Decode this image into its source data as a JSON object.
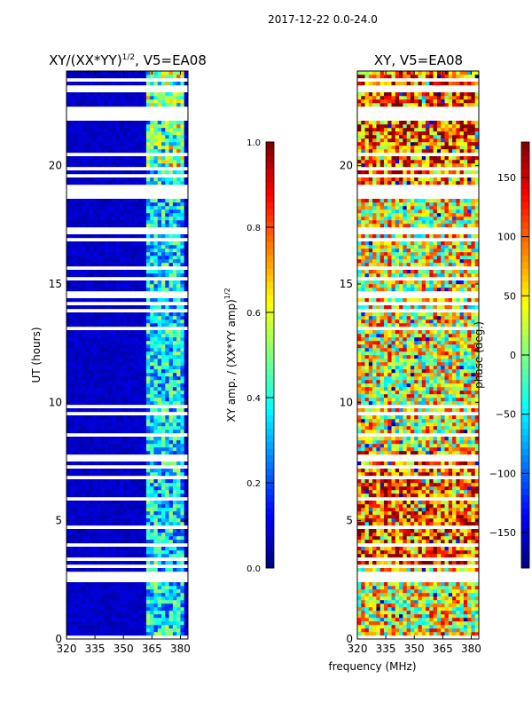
{
  "chart_data": [
    {
      "type": "heatmap",
      "suptitle": "2017-12-22 0.0-24.0",
      "title": "XY/(XX*YY)",
      "title_sup": "1/2",
      "title_suffix": ", V5=EA08",
      "xlabel": "",
      "ylabel": "UT (hours)",
      "xlim": [
        320,
        384
      ],
      "ylim": [
        0,
        24
      ],
      "xticks": [
        "320",
        "335",
        "350",
        "365",
        "380"
      ],
      "xtick_values": [
        320,
        335,
        350,
        365,
        380
      ],
      "yticks": [
        "0",
        "5",
        "10",
        "15",
        "20"
      ],
      "ytick_values": [
        0,
        5,
        10,
        15,
        20
      ],
      "colormap": "jet",
      "colorbar": {
        "label": "XY amp. / (XX*YY amp)",
        "label_sup": "1/2",
        "range": [
          0,
          1
        ],
        "ticks": [
          "0.0",
          "0.2",
          "0.4",
          "0.6",
          "0.8",
          "1.0"
        ],
        "tick_values": [
          0,
          0.2,
          0.4,
          0.6,
          0.8,
          1.0
        ]
      },
      "quantity": "normalized XY amplitude, low (~0.05) below 362 MHz, 0.2-1.0 in 362-382 MHz band"
    },
    {
      "type": "heatmap",
      "title": "XY, V5=EA08",
      "xlabel": "frequency (MHz)",
      "ylabel": "",
      "xlim": [
        320,
        384
      ],
      "ylim": [
        0,
        24
      ],
      "xticks": [
        "320",
        "335",
        "350",
        "365",
        "380"
      ],
      "xtick_values": [
        320,
        335,
        350,
        365,
        380
      ],
      "yticks": [
        "0",
        "5",
        "10",
        "15",
        "20"
      ],
      "ytick_values": [
        0,
        5,
        10,
        15,
        20
      ],
      "colormap": "jet",
      "colorbar": {
        "label": "phase (deg.)",
        "range": [
          -180,
          180
        ],
        "ticks": [
          "−150",
          "−100",
          "−50",
          "0",
          "50",
          "100",
          "150"
        ],
        "tick_values": [
          -150,
          -100,
          -50,
          0,
          50,
          100,
          150
        ]
      },
      "quantity": "XY phase in degrees, noisy"
    }
  ],
  "flagged_hours": [
    [
      2.4,
      2.8
    ],
    [
      3.25,
      3.45
    ],
    [
      4.6,
      4.85
    ],
    [
      6.75,
      6.95
    ],
    [
      7.55,
      7.75
    ],
    [
      18.6,
      19.15
    ],
    [
      21.95,
      22.4
    ],
    [
      15.4,
      15.5
    ],
    [
      13.1,
      13.2
    ],
    [
      9.8,
      9.9
    ]
  ]
}
